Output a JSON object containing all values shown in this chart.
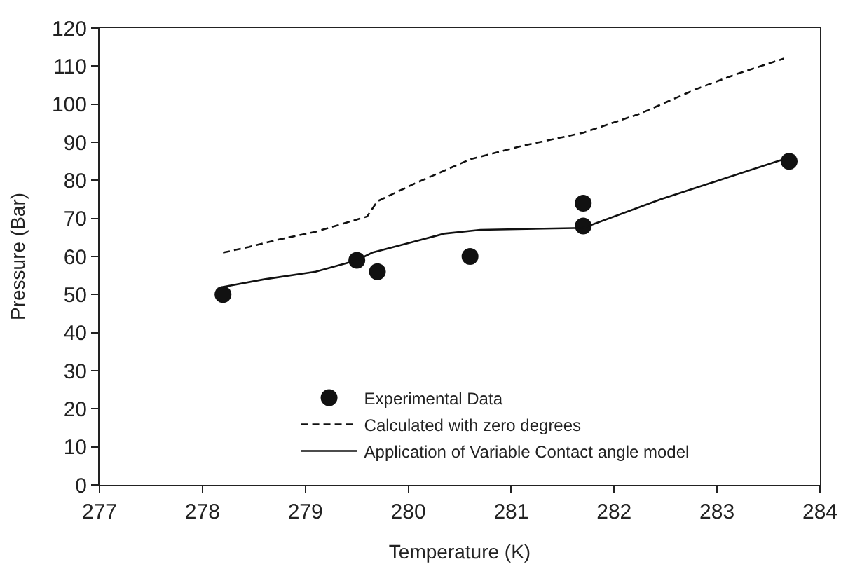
{
  "chart_data": {
    "type": "scatter",
    "xlabel": "Temperature (K)",
    "ylabel": "Pressure (Bar)",
    "xlim": [
      277,
      284
    ],
    "xticks": [
      277,
      278,
      279,
      280,
      281,
      282,
      283,
      284
    ],
    "ylim": [
      0,
      120
    ],
    "yticks": [
      0,
      10,
      20,
      30,
      40,
      50,
      60,
      70,
      80,
      90,
      100,
      110,
      120
    ],
    "legend": "bottom",
    "series": [
      {
        "name": "Experimental Data",
        "marker": "circle",
        "color": "#111111",
        "x": [
          278.2,
          279.5,
          279.7,
          280.6,
          281.7,
          281.7,
          283.7
        ],
        "values": [
          50,
          59,
          56,
          60,
          74,
          68,
          85
        ]
      },
      {
        "name": "Calculated with zero degrees",
        "type": "line",
        "line_style": "dashed",
        "color": "#111111",
        "x": [
          278.2,
          278.45,
          278.75,
          279.1,
          279.35,
          279.6,
          279.7,
          280.05,
          280.6,
          281.1,
          281.7,
          282.25,
          282.8,
          283.2,
          283.65
        ],
        "values": [
          61,
          62.5,
          64.5,
          66.5,
          68.5,
          70.5,
          74.5,
          79,
          85.5,
          89,
          92.5,
          97.5,
          104,
          108,
          112
        ]
      },
      {
        "name": "Application of Variable Contact angle model",
        "type": "line",
        "line_style": "solid",
        "color": "#111111",
        "x": [
          278.2,
          278.6,
          279.1,
          279.5,
          279.65,
          280.0,
          280.35,
          280.7,
          281.7,
          282.45,
          283.7
        ],
        "values": [
          52,
          54,
          56,
          59,
          61,
          63.5,
          66,
          67,
          67.5,
          75,
          86
        ]
      }
    ]
  }
}
